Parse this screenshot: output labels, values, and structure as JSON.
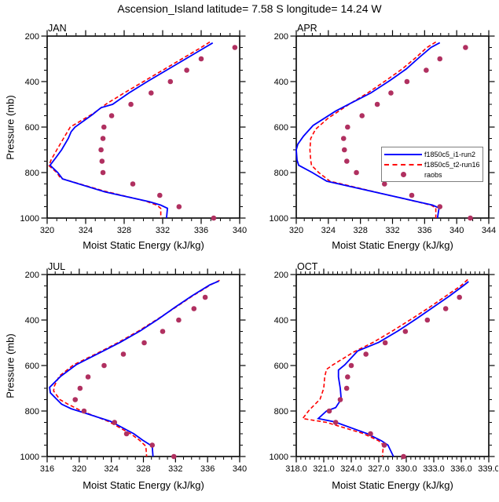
{
  "title": "Ascension_Island  latitude= 7.58 S longitude= 14.24 W",
  "axes": {
    "xlabel": "Moist Static Energy (kJ/kg)",
    "ylabel": "Pressure (mb)"
  },
  "colors": {
    "run2": "#0000ff",
    "run16": "#ff0000",
    "raobs": "#b03060",
    "axis": "#000000",
    "legend_border": "#7f7f7f"
  },
  "legend": {
    "items": [
      {
        "label": "f1850c5_i1-run2",
        "style": "solid-line",
        "color": "#0000ff"
      },
      {
        "label": "f1850c5_t2-run16",
        "style": "dashed-line",
        "color": "#ff0000"
      },
      {
        "label": "raobs",
        "style": "dot",
        "color": "#b03060"
      }
    ]
  },
  "chart_data": {
    "type": "line",
    "title": "Ascension_Island  latitude= 7.58 S longitude= 14.24 W",
    "xlabel": "Moist Static Energy (kJ/kg)",
    "ylabel": "Pressure (mb)",
    "legend_position": "right-middle of APR panel",
    "grid": false,
    "y_axis": {
      "lim": [
        200,
        1000
      ],
      "ticks": [
        200,
        400,
        600,
        800,
        1000
      ],
      "minor_step": 50,
      "inverted": true
    },
    "series_names": [
      "f1850c5_i1-run2",
      "f1850c5_t2-run16",
      "raobs"
    ],
    "point_format": "[moist_static_energy_kJ_per_kg, pressure_mb]",
    "panels": [
      {
        "label": "JAN",
        "xlim": [
          320,
          340
        ],
        "xticks": [
          320,
          324,
          328,
          332,
          336,
          340
        ],
        "xtick_labels": [
          "320",
          "324",
          "328",
          "332",
          "336",
          "340"
        ],
        "x_minor_step": 1,
        "run2": [
          [
            337.2,
            230
          ],
          [
            336.4,
            250
          ],
          [
            334.4,
            300
          ],
          [
            332.4,
            350
          ],
          [
            330.4,
            400
          ],
          [
            328.5,
            450
          ],
          [
            326.8,
            500
          ],
          [
            325.6,
            515
          ],
          [
            324.7,
            545
          ],
          [
            322.9,
            600
          ],
          [
            322.5,
            620
          ],
          [
            322.2,
            650
          ],
          [
            321.5,
            700
          ],
          [
            320.9,
            735
          ],
          [
            320.3,
            768
          ],
          [
            321.1,
            800
          ],
          [
            321.6,
            828
          ],
          [
            326.0,
            885
          ],
          [
            330.6,
            928
          ],
          [
            331.8,
            943
          ],
          [
            332.5,
            957
          ],
          [
            332.4,
            1000
          ]
        ],
        "run16": [
          [
            336.9,
            226
          ],
          [
            336.0,
            250
          ],
          [
            334.0,
            300
          ],
          [
            332.0,
            350
          ],
          [
            330.0,
            400
          ],
          [
            328.0,
            450
          ],
          [
            326.2,
            497
          ],
          [
            324.8,
            540
          ],
          [
            322.4,
            600
          ],
          [
            321.7,
            650
          ],
          [
            321.0,
            700
          ],
          [
            320.4,
            745
          ],
          [
            320.2,
            770
          ],
          [
            321.0,
            800
          ],
          [
            321.4,
            825
          ],
          [
            326.0,
            882
          ],
          [
            330.2,
            925
          ],
          [
            331.4,
            943
          ],
          [
            331.8,
            958
          ],
          [
            331.8,
            1000
          ]
        ],
        "raobs": [
          [
            339.5,
            250
          ],
          [
            336.0,
            300
          ],
          [
            334.5,
            350
          ],
          [
            332.8,
            400
          ],
          [
            330.8,
            450
          ],
          [
            328.7,
            500
          ],
          [
            326.7,
            550
          ],
          [
            325.9,
            600
          ],
          [
            325.8,
            650
          ],
          [
            325.6,
            700
          ],
          [
            325.7,
            750
          ],
          [
            325.8,
            800
          ],
          [
            328.9,
            850
          ],
          [
            331.7,
            900
          ],
          [
            333.7,
            950
          ],
          [
            337.3,
            1000
          ]
        ]
      },
      {
        "label": "APR",
        "xlim": [
          320,
          344
        ],
        "xticks": [
          320,
          324,
          328,
          332,
          336,
          340,
          344
        ],
        "xtick_labels": [
          "320",
          "324",
          "328",
          "332",
          "336",
          "340",
          "344"
        ],
        "x_minor_step": 1,
        "run2": [
          [
            337.9,
            229
          ],
          [
            336.8,
            250
          ],
          [
            335.3,
            295
          ],
          [
            333.7,
            345
          ],
          [
            331.7,
            395
          ],
          [
            329.3,
            450
          ],
          [
            326.7,
            497
          ],
          [
            324.9,
            530
          ],
          [
            322.1,
            593
          ],
          [
            320.9,
            640
          ],
          [
            320.2,
            675
          ],
          [
            320.0,
            700
          ],
          [
            320.1,
            745
          ],
          [
            320.3,
            768
          ],
          [
            322.0,
            800
          ],
          [
            323.8,
            838
          ],
          [
            331.0,
            895
          ],
          [
            335.1,
            928
          ],
          [
            337.0,
            943
          ],
          [
            337.8,
            956
          ],
          [
            337.6,
            1000
          ]
        ],
        "run16": [
          [
            337.4,
            226
          ],
          [
            336.3,
            250
          ],
          [
            334.9,
            295
          ],
          [
            333.2,
            345
          ],
          [
            331.2,
            395
          ],
          [
            328.9,
            450
          ],
          [
            326.8,
            495
          ],
          [
            325.3,
            530
          ],
          [
            324.0,
            560
          ],
          [
            322.4,
            610
          ],
          [
            321.8,
            650
          ],
          [
            321.7,
            700
          ],
          [
            321.8,
            745
          ],
          [
            321.9,
            768
          ],
          [
            322.8,
            800
          ],
          [
            324.2,
            838
          ],
          [
            331.0,
            895
          ],
          [
            335.0,
            928
          ],
          [
            336.8,
            943
          ],
          [
            337.4,
            956
          ],
          [
            337.4,
            1000
          ]
        ],
        "raobs": [
          [
            341.1,
            250
          ],
          [
            337.9,
            300
          ],
          [
            336.2,
            350
          ],
          [
            333.8,
            400
          ],
          [
            331.8,
            450
          ],
          [
            330.1,
            500
          ],
          [
            328.2,
            550
          ],
          [
            326.4,
            600
          ],
          [
            325.9,
            650
          ],
          [
            326.0,
            700
          ],
          [
            326.3,
            750
          ],
          [
            327.5,
            800
          ],
          [
            331.0,
            850
          ],
          [
            334.4,
            900
          ],
          [
            337.9,
            950
          ],
          [
            341.7,
            1000
          ]
        ]
      },
      {
        "label": "JUL",
        "xlim": [
          316,
          340
        ],
        "xticks": [
          316,
          320,
          324,
          328,
          332,
          336,
          340
        ],
        "xtick_labels": [
          "316",
          "320",
          "324",
          "328",
          "332",
          "336",
          "340"
        ],
        "x_minor_step": 1,
        "run2": [
          [
            337.4,
            229
          ],
          [
            336.3,
            245
          ],
          [
            334.0,
            295
          ],
          [
            331.9,
            345
          ],
          [
            329.9,
            395
          ],
          [
            327.6,
            448
          ],
          [
            325.1,
            498
          ],
          [
            322.4,
            547
          ],
          [
            319.6,
            597
          ],
          [
            317.7,
            647
          ],
          [
            316.3,
            696
          ],
          [
            316.4,
            720
          ],
          [
            317.8,
            770
          ],
          [
            319.0,
            790
          ],
          [
            320.8,
            810
          ],
          [
            323.9,
            845
          ],
          [
            326.8,
            900
          ],
          [
            327.9,
            928
          ],
          [
            329.1,
            955
          ],
          [
            329.2,
            1000
          ]
        ],
        "run16": [
          [
            337.5,
            225
          ],
          [
            336.4,
            245
          ],
          [
            334.1,
            295
          ],
          [
            332.0,
            345
          ],
          [
            329.8,
            395
          ],
          [
            327.4,
            448
          ],
          [
            324.9,
            498
          ],
          [
            322.2,
            547
          ],
          [
            319.3,
            597
          ],
          [
            317.5,
            647
          ],
          [
            316.9,
            690
          ],
          [
            316.8,
            712
          ],
          [
            317.6,
            750
          ],
          [
            318.6,
            770
          ],
          [
            320.3,
            800
          ],
          [
            323.6,
            845
          ],
          [
            326.4,
            900
          ],
          [
            327.5,
            928
          ],
          [
            328.3,
            955
          ],
          [
            328.4,
            1000
          ]
        ],
        "raobs": [
          [
            335.7,
            300
          ],
          [
            334.3,
            350
          ],
          [
            332.4,
            400
          ],
          [
            330.4,
            450
          ],
          [
            328.1,
            500
          ],
          [
            325.5,
            550
          ],
          [
            323.1,
            600
          ],
          [
            321.1,
            650
          ],
          [
            320.1,
            700
          ],
          [
            319.5,
            750
          ],
          [
            320.6,
            800
          ],
          [
            324.4,
            850
          ],
          [
            325.9,
            900
          ],
          [
            329.1,
            950
          ],
          [
            331.8,
            1000
          ]
        ]
      },
      {
        "label": "OCT",
        "xlim": [
          318,
          339
        ],
        "xticks": [
          318,
          321,
          324,
          327,
          330,
          333,
          336,
          339
        ],
        "xtick_labels": [
          "318.0",
          "321.0",
          "324.0",
          "327.0",
          "330.0",
          "333.0",
          "336.0",
          "339.0"
        ],
        "x_minor_step": 0.5,
        "run2": [
          [
            336.8,
            231
          ],
          [
            336.2,
            250
          ],
          [
            334.7,
            295
          ],
          [
            332.9,
            345
          ],
          [
            331.1,
            395
          ],
          [
            329.1,
            448
          ],
          [
            327.0,
            498
          ],
          [
            324.7,
            536
          ],
          [
            323.3,
            597
          ],
          [
            322.6,
            620
          ],
          [
            322.6,
            650
          ],
          [
            322.8,
            700
          ],
          [
            322.9,
            748
          ],
          [
            322.3,
            785
          ],
          [
            321.3,
            800
          ],
          [
            320.4,
            833
          ],
          [
            322.2,
            848
          ],
          [
            325.7,
            899
          ],
          [
            327.3,
            931
          ],
          [
            328.0,
            950
          ],
          [
            328.6,
            1000
          ]
        ],
        "run16": [
          [
            336.7,
            222
          ],
          [
            336.0,
            248
          ],
          [
            334.3,
            295
          ],
          [
            332.5,
            345
          ],
          [
            330.6,
            395
          ],
          [
            328.5,
            448
          ],
          [
            326.4,
            498
          ],
          [
            324.3,
            540
          ],
          [
            322.0,
            597
          ],
          [
            321.3,
            617
          ],
          [
            321.1,
            650
          ],
          [
            321.0,
            700
          ],
          [
            320.6,
            748
          ],
          [
            319.4,
            797
          ],
          [
            318.7,
            833
          ],
          [
            321.3,
            850
          ],
          [
            325.3,
            899
          ],
          [
            327.0,
            931
          ],
          [
            327.5,
            950
          ],
          [
            327.4,
            1000
          ]
        ],
        "raobs": [
          [
            335.8,
            300
          ],
          [
            334.3,
            350
          ],
          [
            332.3,
            400
          ],
          [
            329.9,
            450
          ],
          [
            327.7,
            500
          ],
          [
            325.6,
            550
          ],
          [
            324.0,
            600
          ],
          [
            323.6,
            650
          ],
          [
            323.5,
            700
          ],
          [
            322.8,
            750
          ],
          [
            321.6,
            800
          ],
          [
            322.3,
            850
          ],
          [
            326.1,
            900
          ],
          [
            327.6,
            950
          ],
          [
            329.7,
            1000
          ]
        ]
      }
    ]
  }
}
